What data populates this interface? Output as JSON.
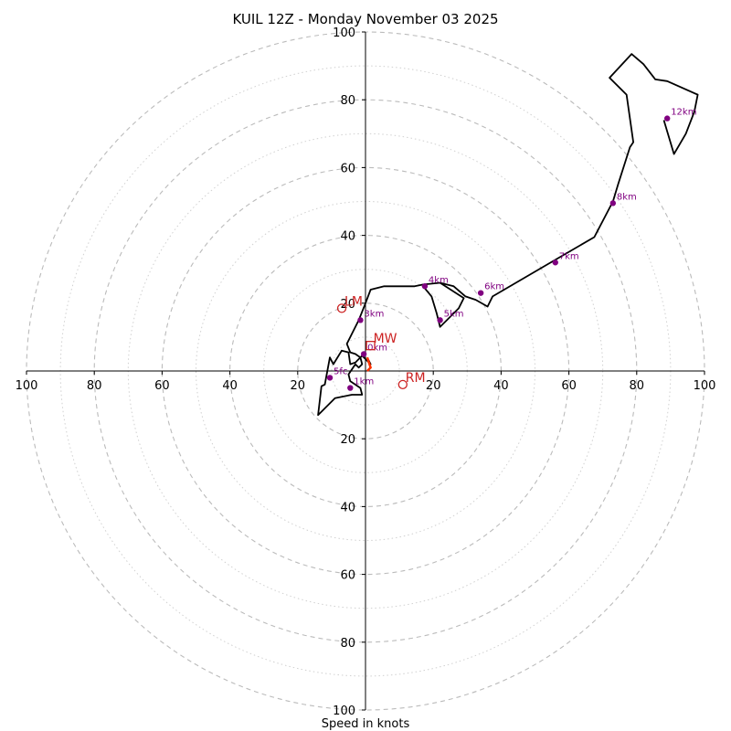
{
  "chart_data": {
    "type": "hodograph",
    "title": "KUIL 12Z - Monday November 03 2025",
    "xlabel": "Speed in knots",
    "units": "knots",
    "rings_major": [
      20,
      40,
      60,
      80,
      100
    ],
    "rings_minor": [
      10,
      30,
      50,
      70,
      90
    ],
    "range": [
      -100,
      100
    ],
    "x_tick_labels": [
      "100",
      "80",
      "60",
      "40",
      "20",
      "20",
      "40",
      "60",
      "80",
      "100"
    ],
    "y_tick_labels_top": [
      "100",
      "80",
      "60",
      "40",
      "20"
    ],
    "y_tick_labels_bottom": [
      "20",
      "40",
      "60",
      "80",
      "100"
    ],
    "trace": [
      [
        0.5,
        4
      ],
      [
        1.5,
        2
      ],
      [
        -1,
        4.5
      ],
      [
        -3,
        2.5
      ],
      [
        -4.5,
        2
      ],
      [
        -5,
        5.5
      ],
      [
        -7,
        6
      ],
      [
        -9.5,
        2
      ],
      [
        -10.5,
        4
      ],
      [
        -12,
        -4
      ],
      [
        -13,
        -4.5
      ],
      [
        -14,
        -13
      ],
      [
        -9,
        -8
      ],
      [
        -4,
        -7
      ],
      [
        -1,
        -7
      ],
      [
        -1.5,
        -5
      ],
      [
        -4.5,
        -3
      ],
      [
        -5,
        -1
      ],
      [
        -3,
        2
      ],
      [
        -2,
        1
      ],
      [
        -1,
        2
      ],
      [
        -1.5,
        4
      ],
      [
        -3,
        5
      ],
      [
        -4.5,
        5.5
      ],
      [
        -5.5,
        8
      ],
      [
        -5.5,
        8
      ],
      [
        -2,
        15
      ],
      [
        0,
        20
      ],
      [
        1.5,
        24
      ],
      [
        5.5,
        25
      ],
      [
        14.5,
        25
      ],
      [
        17,
        25.5
      ],
      [
        22,
        26
      ],
      [
        26,
        25
      ],
      [
        29.5,
        22
      ],
      [
        32.5,
        21
      ],
      [
        36,
        19
      ],
      [
        37.5,
        22
      ],
      [
        55.5,
        32.5
      ],
      [
        67.5,
        39.5
      ],
      [
        73,
        50
      ],
      [
        74.5,
        55
      ],
      [
        78,
        66
      ],
      [
        79,
        67.5
      ],
      [
        77,
        81.5
      ],
      [
        72,
        86.5
      ],
      [
        78.5,
        93.5
      ],
      [
        82,
        90.5
      ],
      [
        85.5,
        86
      ],
      [
        89,
        85.5
      ],
      [
        98,
        81.5
      ],
      [
        97,
        76.5
      ],
      [
        94.5,
        70
      ],
      [
        91,
        64
      ],
      [
        88,
        74
      ]
    ],
    "trace_inner": [
      [
        17,
        25
      ],
      [
        19.5,
        22
      ],
      [
        21,
        17
      ],
      [
        22,
        13
      ],
      [
        24.5,
        15.5
      ],
      [
        27.5,
        18.5
      ],
      [
        29,
        21.5
      ],
      [
        22,
        26
      ]
    ],
    "lowest_segment": [
      [
        0.5,
        4
      ],
      [
        1.5,
        1
      ],
      [
        0.5,
        0
      ]
    ],
    "height_markers": [
      {
        "label": "1km",
        "x": -4.5,
        "y": -5
      },
      {
        "label": "5fc",
        "x": -10.5,
        "y": -2
      },
      {
        "label": "0km",
        "x": -0.5,
        "y": 5
      },
      {
        "label": "3km",
        "x": -1.5,
        "y": 15
      },
      {
        "label": "4km",
        "x": 17.5,
        "y": 25
      },
      {
        "label": "5km",
        "x": 22,
        "y": 15
      },
      {
        "label": "6km",
        "x": 34,
        "y": 23
      },
      {
        "label": "7km",
        "x": 56,
        "y": 32
      },
      {
        "label": "8km",
        "x": 73,
        "y": 49.5
      },
      {
        "label": "12km",
        "x": 89,
        "y": 74.5
      }
    ],
    "storm_motion": [
      {
        "label": "LM",
        "x": -7,
        "y": 18.5,
        "shape": "circle"
      },
      {
        "label": "RM",
        "x": 11,
        "y": -4,
        "shape": "circle"
      },
      {
        "label": "MW",
        "x": 1.5,
        "y": 7.5,
        "shape": "square"
      }
    ],
    "colors": {
      "trace": "#000000",
      "marker": "#800080",
      "motion": "#cc2222",
      "lowest_segment": "#ff3300",
      "grid": "#bbbbbb"
    }
  }
}
